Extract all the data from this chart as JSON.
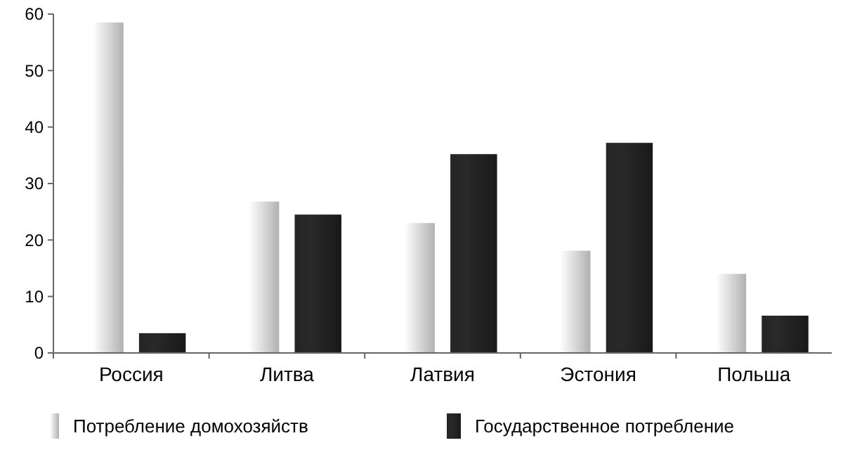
{
  "chart_data": {
    "type": "bar",
    "categories": [
      "Россия",
      "Литва",
      "Латвия",
      "Эстония",
      "Польша"
    ],
    "series": [
      {
        "name": "Потребление домохозяйств",
        "color": "#d4d4d4",
        "values": [
          58.5,
          26.8,
          23,
          18.1,
          14
        ]
      },
      {
        "name": "Государственное потребление",
        "color": "#1e1e1e",
        "values": [
          3.5,
          24.5,
          35.2,
          37.2,
          6.6
        ]
      }
    ],
    "ylim": [
      0,
      60
    ],
    "yticks": [
      0,
      10,
      20,
      30,
      40,
      50,
      60
    ],
    "grid": false,
    "legend": "bottom"
  }
}
